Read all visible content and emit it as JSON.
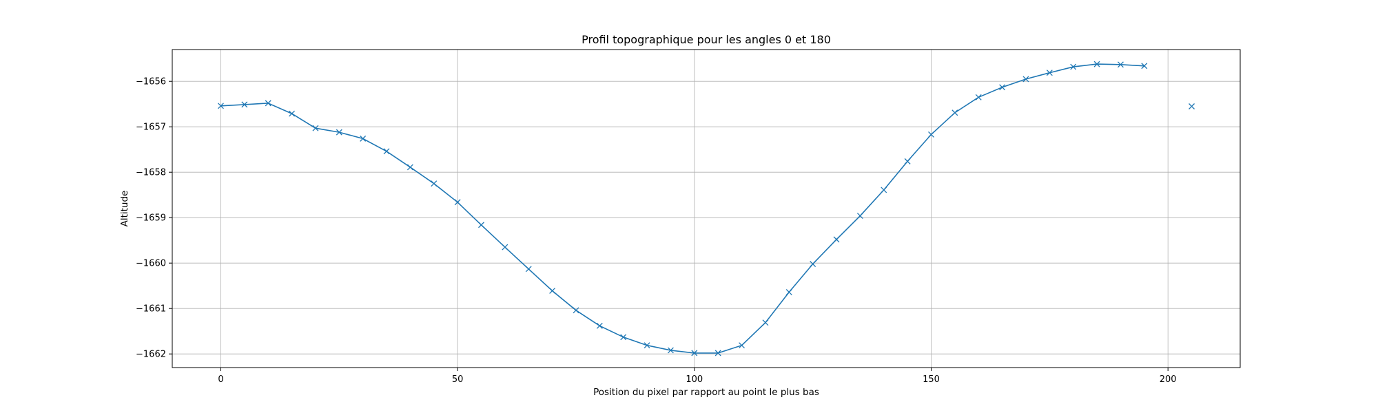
{
  "chart_data": {
    "type": "line",
    "title": "Profil topographique pour les angles 0 et 180",
    "xlabel": "Position du pixel par rapport au point le plus bas",
    "ylabel": "Altitude",
    "xlim": [
      -10.25,
      215.25
    ],
    "ylim": [
      -1662.3,
      -1655.3
    ],
    "xticks": [
      0,
      50,
      100,
      150,
      200
    ],
    "yticks": [
      -1656,
      -1657,
      -1658,
      -1659,
      -1660,
      -1661,
      -1662
    ],
    "grid": true,
    "marker": "x",
    "color": "#1f77b4",
    "series": [
      {
        "x": [
          0,
          5,
          10,
          15,
          20,
          25,
          30,
          35,
          40,
          45,
          50,
          55,
          60,
          65,
          70,
          75,
          80,
          85,
          90,
          95,
          100,
          105,
          110,
          115,
          120,
          125,
          130,
          135,
          140,
          145,
          150,
          155,
          160,
          165,
          170,
          175,
          180,
          185,
          190,
          195
        ],
        "y": [
          -1656.54,
          -1656.51,
          -1656.48,
          -1656.71,
          -1657.03,
          -1657.12,
          -1657.26,
          -1657.54,
          -1657.89,
          -1658.25,
          -1658.66,
          -1659.16,
          -1659.65,
          -1660.13,
          -1660.61,
          -1661.04,
          -1661.38,
          -1661.63,
          -1661.81,
          -1661.92,
          -1661.98,
          -1661.98,
          -1661.81,
          -1661.31,
          -1660.64,
          -1660.02,
          -1659.48,
          -1658.96,
          -1658.39,
          -1657.76,
          -1657.17,
          -1656.69,
          -1656.35,
          -1656.13,
          -1655.95,
          -1655.81,
          -1655.68,
          -1655.62,
          -1655.63,
          -1655.66
        ]
      },
      {
        "x": [
          205
        ],
        "y": [
          -1656.55
        ]
      }
    ]
  }
}
